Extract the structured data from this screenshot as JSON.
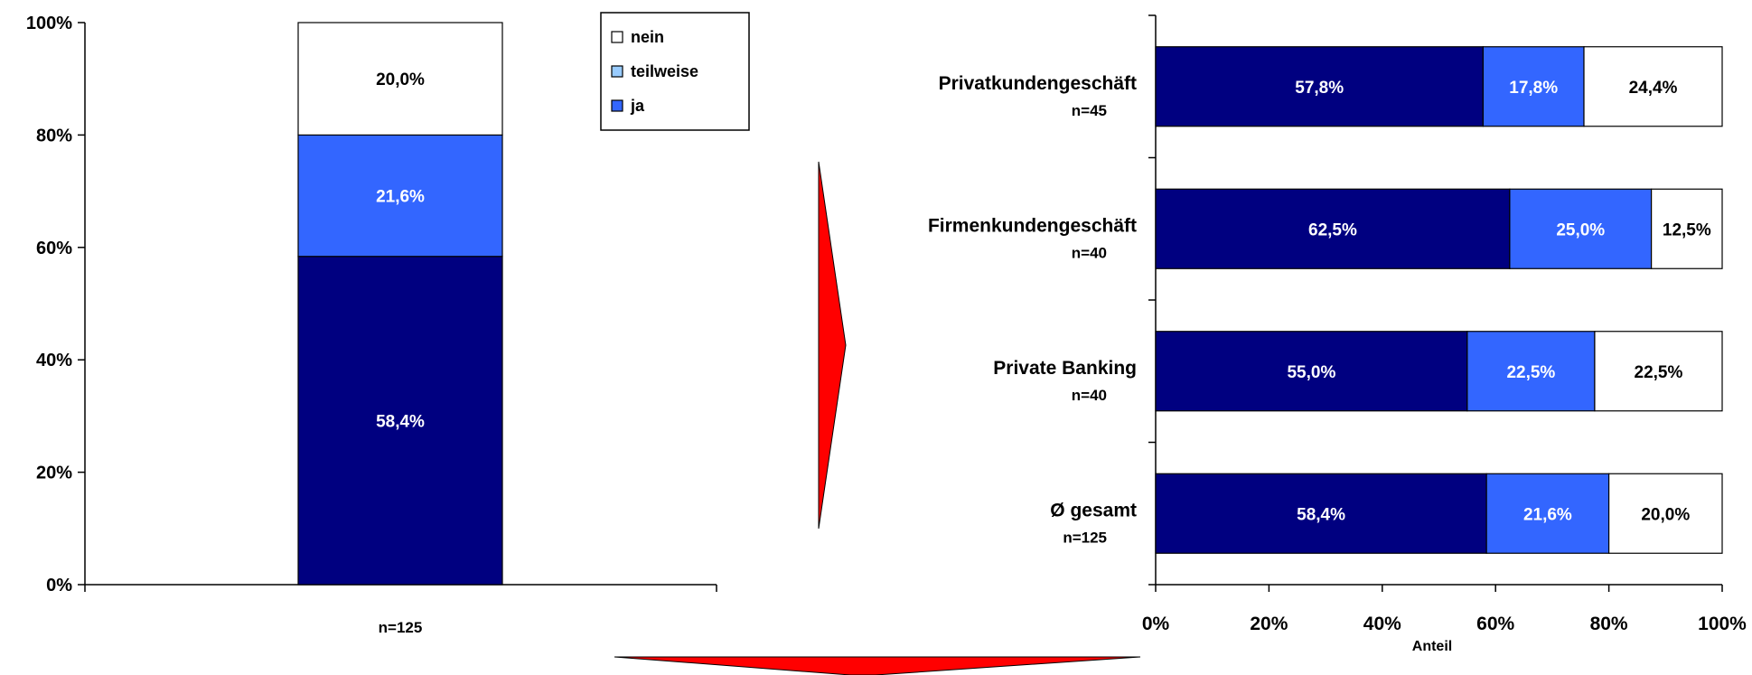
{
  "chart_data": [
    {
      "type": "bar",
      "orientation": "vertical",
      "stacked": true,
      "categories": [
        "n=125"
      ],
      "series": [
        {
          "name": "ja",
          "values": [
            58.4
          ],
          "labels": [
            "58,4%"
          ],
          "color": "#000080"
        },
        {
          "name": "teilweise",
          "values": [
            21.6
          ],
          "labels": [
            "21,6%"
          ],
          "color": "#3366FF"
        },
        {
          "name": "nein",
          "values": [
            20.0
          ],
          "labels": [
            "20,0%"
          ],
          "color": "#FFFFFF"
        }
      ],
      "yticks": [
        "0%",
        "20%",
        "40%",
        "60%",
        "80%",
        "100%"
      ],
      "ylim": [
        0,
        100
      ],
      "legend": {
        "placement": "top-right",
        "entries": [
          {
            "name": "nein",
            "color": "#FFFFFF"
          },
          {
            "name": "teilweise",
            "color": "#99CCFF"
          },
          {
            "name": "ja",
            "color": "#3366FF"
          }
        ]
      },
      "grid": false
    },
    {
      "type": "bar",
      "orientation": "horizontal",
      "stacked": true,
      "categories": [
        {
          "name": "Privatkundengeschäft",
          "n": "n=45"
        },
        {
          "name": "Firmenkundengeschäft",
          "n": "n=40"
        },
        {
          "name": "Private Banking",
          "n": "n=40"
        },
        {
          "name": "Ø gesamt",
          "n": "n=125"
        }
      ],
      "series": [
        {
          "name": "ja",
          "values": [
            57.8,
            62.5,
            55.0,
            58.4
          ],
          "labels": [
            "57,8%",
            "62,5%",
            "55,0%",
            "58,4%"
          ],
          "color": "#000080"
        },
        {
          "name": "teilweise",
          "values": [
            17.8,
            25.0,
            22.5,
            21.6
          ],
          "labels": [
            "17,8%",
            "25,0%",
            "22,5%",
            "21,6%"
          ],
          "color": "#3366FF"
        },
        {
          "name": "nein",
          "values": [
            24.4,
            12.5,
            22.5,
            20.0
          ],
          "labels": [
            "24,4%",
            "12,5%",
            "22,5%",
            "20,0%"
          ],
          "color": "#FFFFFF"
        }
      ],
      "xticks": [
        "0%",
        "20%",
        "40%",
        "60%",
        "80%",
        "100%"
      ],
      "xlim": [
        0,
        100
      ],
      "xlabel": "Anteil",
      "grid": false
    }
  ],
  "colors": {
    "arrow": "#FF0000",
    "axis": "#000000"
  }
}
